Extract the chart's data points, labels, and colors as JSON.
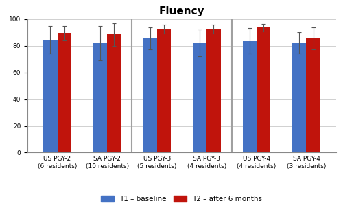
{
  "title": "Fluency",
  "groups": [
    {
      "label": "US PGY-2\n(6 residents)",
      "t1_mean": 84.5,
      "t1_err": 10.5,
      "t2_mean": 89.5,
      "t2_err": 5.5
    },
    {
      "label": "SA PGY-2\n(10 residents)",
      "t1_mean": 82.0,
      "t1_err": 13.0,
      "t2_mean": 88.5,
      "t2_err": 8.5
    },
    {
      "label": "US PGY-3\n(5 residents)",
      "t1_mean": 85.5,
      "t1_err": 8.0,
      "t2_mean": 92.5,
      "t2_err": 3.5
    },
    {
      "label": "SA PGY-3\n(4 residents)",
      "t1_mean": 82.0,
      "t1_err": 10.0,
      "t2_mean": 92.5,
      "t2_err": 3.5
    },
    {
      "label": "US PGY-4\n(4 residents)",
      "t1_mean": 83.5,
      "t1_err": 9.5,
      "t2_mean": 93.5,
      "t2_err": 3.0
    },
    {
      "label": "SA PGY-4\n(3 residents)",
      "t1_mean": 82.0,
      "t1_err": 8.0,
      "t2_mean": 85.5,
      "t2_err": 8.0
    }
  ],
  "dividers_after": [
    1,
    3
  ],
  "t1_color": "#4472C4",
  "t2_color": "#C0140C",
  "bar_width": 0.28,
  "ylim": [
    0,
    100
  ],
  "yticks": [
    0,
    20,
    40,
    60,
    80,
    100
  ],
  "legend_t1": "T1 – baseline",
  "legend_t2": "T2 – after 6 months",
  "background_color": "#ffffff",
  "grid_color": "#d0d0d0",
  "divider_color": "#a0a0a0",
  "title_fontsize": 11,
  "tick_fontsize": 6.5,
  "legend_fontsize": 7.5
}
